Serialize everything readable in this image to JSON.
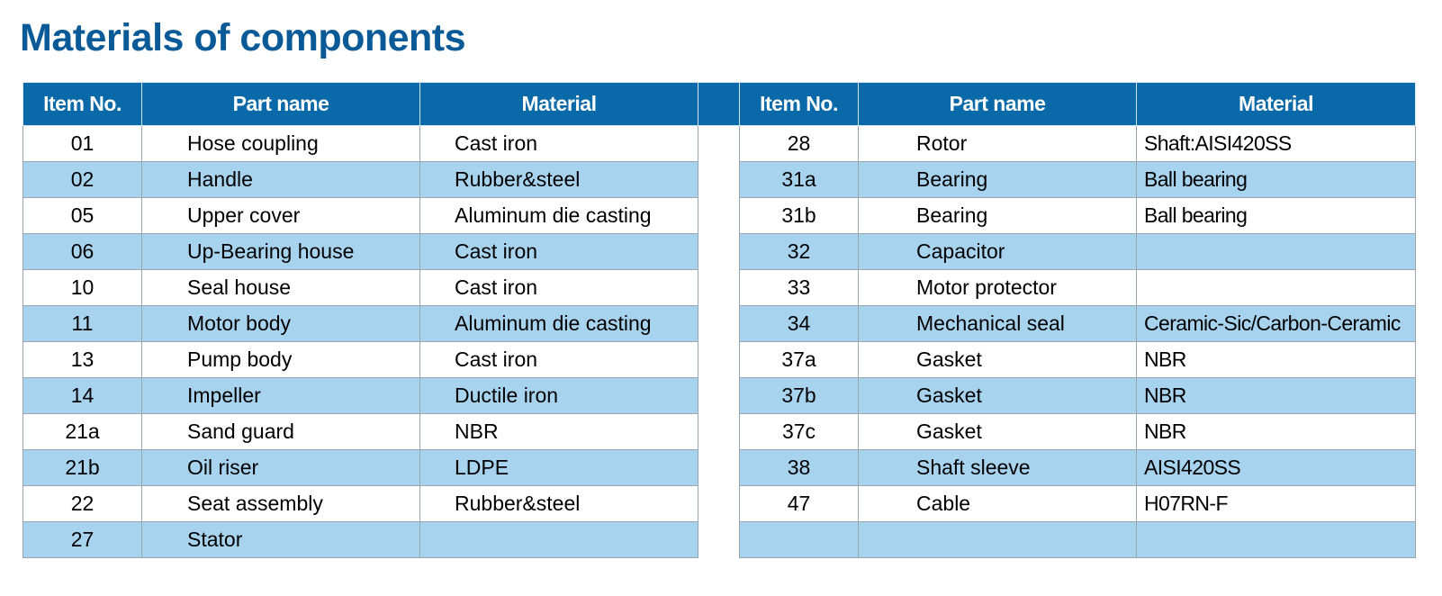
{
  "title": "Materials of components",
  "left": {
    "headers": [
      "Item No.",
      "Part name",
      "Material"
    ],
    "rows": [
      {
        "item": "01",
        "part": "Hose coupling",
        "material": "Cast iron"
      },
      {
        "item": "02",
        "part": "Handle",
        "material": "Rubber&steel"
      },
      {
        "item": "05",
        "part": "Upper cover",
        "material": "Aluminum die casting"
      },
      {
        "item": "06",
        "part": "Up-Bearing house",
        "material": "Cast iron"
      },
      {
        "item": "10",
        "part": "Seal house",
        "material": "Cast iron"
      },
      {
        "item": "11",
        "part": "Motor body",
        "material": "Aluminum die casting"
      },
      {
        "item": "13",
        "part": "Pump body",
        "material": "Cast iron"
      },
      {
        "item": "14",
        "part": "Impeller",
        "material": "Ductile iron"
      },
      {
        "item": "21a",
        "part": "Sand guard",
        "material": "NBR"
      },
      {
        "item": "21b",
        "part": "Oil riser",
        "material": "LDPE"
      },
      {
        "item": "22",
        "part": "Seat assembly",
        "material": "Rubber&steel"
      },
      {
        "item": "27",
        "part": "Stator"
      }
    ]
  },
  "right": {
    "headers": [
      "Item No.",
      "Part name",
      "Material"
    ],
    "rows": [
      {
        "item": "28",
        "part": "Rotor",
        "material": "Shaft:AISI420SS"
      },
      {
        "item": "31a",
        "part": "Bearing",
        "material": "Ball bearing"
      },
      {
        "item": "31b",
        "part": "Bearing",
        "material": "Ball bearing"
      },
      {
        "item": "32",
        "part": "Capacitor"
      },
      {
        "item": "33",
        "part": "Motor protector"
      },
      {
        "item": "34",
        "part": "Mechanical seal",
        "material": "Ceramic-Sic/Carbon-Ceramic"
      },
      {
        "item": "37a",
        "part": "Gasket",
        "material": "NBR"
      },
      {
        "item": "37b",
        "part": "Gasket",
        "material": "NBR"
      },
      {
        "item": "37c",
        "part": "Gasket",
        "material": "NBR"
      },
      {
        "item": "38",
        "part": "Shaft sleeve",
        "material": "AISI420SS"
      },
      {
        "item": "47",
        "part": "Cable",
        "material": "H07RN-F"
      }
    ]
  }
}
